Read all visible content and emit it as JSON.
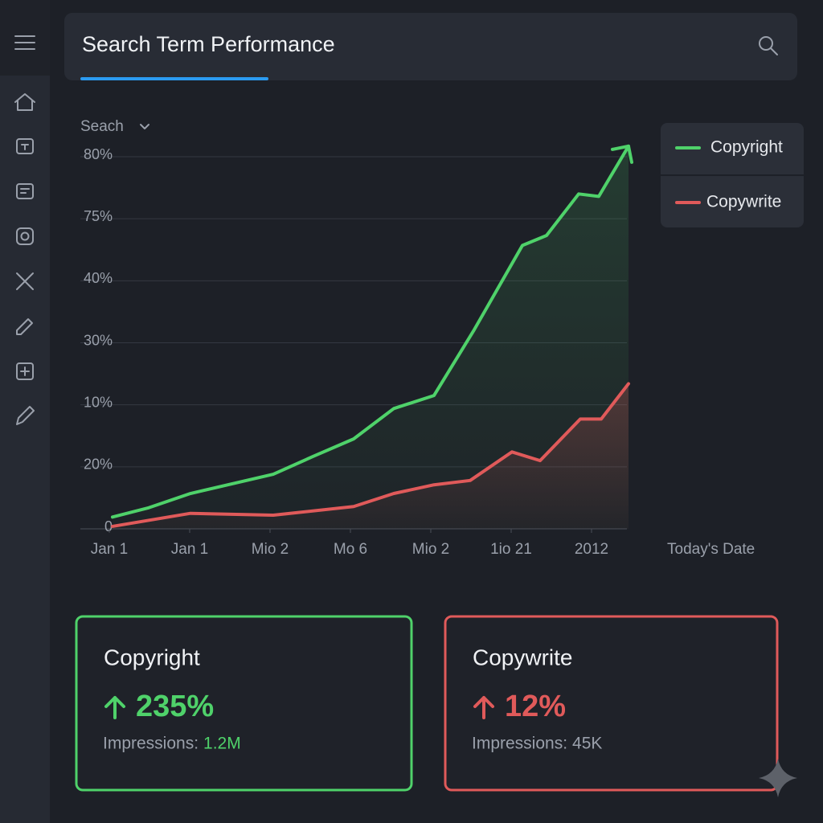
{
  "header": {
    "title": "Search Term Performance"
  },
  "chart_data": {
    "type": "line",
    "dropdown": "Seach",
    "x_label": "Today's Date",
    "xticks": [
      {
        "value": 0,
        "label": "Jan 1"
      },
      {
        "value": 1,
        "label": "Jan 1"
      },
      {
        "value": 2,
        "label": "Mio 2"
      },
      {
        "value": 3,
        "label": "Mo 6"
      },
      {
        "value": 4,
        "label": "Mio 2"
      },
      {
        "value": 5,
        "label": "1io 21"
      },
      {
        "value": 6,
        "label": "2012"
      }
    ],
    "xlim": [
      0,
      6.46
    ],
    "ylim": [
      0,
      6
    ],
    "yticks": [
      0,
      {
        "value": 1,
        "label": "20%"
      },
      {
        "value": 2,
        "label": "10%"
      },
      {
        "value": 3,
        "label": "30%"
      },
      {
        "value": 4,
        "label": "40%"
      },
      {
        "value": 5,
        "label": "75%"
      },
      {
        "value": 6,
        "label": "80%"
      }
    ],
    "grid": true,
    "legend": "upper right",
    "series": [
      {
        "name": "Copyright",
        "color": "#4fd26a",
        "x": [
          0.04,
          0.49,
          1.01,
          1.54,
          2.04,
          2.54,
          3.04,
          3.54,
          4.04,
          4.54,
          5.14,
          5.44,
          5.84,
          6.09,
          6.46
        ],
        "values": [
          0.19,
          0.34,
          0.57,
          0.73,
          0.88,
          1.17,
          1.45,
          1.94,
          2.15,
          3.21,
          4.57,
          4.73,
          5.4,
          5.36,
          6.17
        ]
      },
      {
        "name": "Copywrite",
        "color": "#e05a5a",
        "x": [
          0.04,
          1.01,
          2.04,
          3.04,
          3.54,
          4.04,
          4.49,
          5.01,
          5.36,
          5.86,
          6.12,
          6.46
        ],
        "values": [
          0.04,
          0.25,
          0.22,
          0.36,
          0.57,
          0.71,
          0.78,
          1.24,
          1.1,
          1.77,
          1.77,
          2.34
        ]
      }
    ]
  },
  "cards": [
    {
      "title": "Copyright",
      "change": "235%",
      "impressions_label": "Impressions:",
      "impressions_value": "1.2M",
      "color": "#4fd26a"
    },
    {
      "title": "Copywrite",
      "change": "12%",
      "impressions_label": "Impressions:",
      "impressions_value": "45K",
      "color": "#e05a5a"
    }
  ]
}
